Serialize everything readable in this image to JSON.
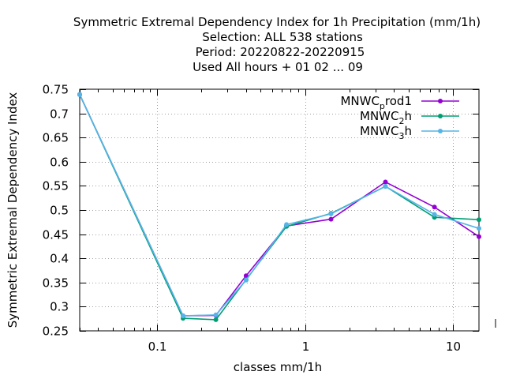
{
  "chart_data": {
    "type": "line",
    "title_lines": [
      "Symmetric Extremal Dependency Index  for 1h Precipitation (mm/1h)",
      "Selection: ALL    538 stations",
      "Period: 20220822-20220915",
      "Used  All hours + 01 02 ... 09"
    ],
    "xlabel": "classes mm/1h",
    "ylabel": "Symmetric Extremal Dependency Index",
    "x_scale": "log",
    "xlim": [
      0.03,
      15
    ],
    "ylim": [
      0.25,
      0.75
    ],
    "grid": true,
    "legend_position": "top-right",
    "x_ticks": [
      {
        "value": 0.1,
        "label": "0.1"
      },
      {
        "value": 1,
        "label": "1"
      },
      {
        "value": 10,
        "label": "10"
      }
    ],
    "y_ticks": [
      {
        "value": 0.25,
        "label": "0.25"
      },
      {
        "value": 0.3,
        "label": "0.3"
      },
      {
        "value": 0.35,
        "label": "0.35"
      },
      {
        "value": 0.4,
        "label": "0.4"
      },
      {
        "value": 0.45,
        "label": "0.45"
      },
      {
        "value": 0.5,
        "label": "0.5"
      },
      {
        "value": 0.55,
        "label": "0.55"
      },
      {
        "value": 0.6,
        "label": "0.6"
      },
      {
        "value": 0.65,
        "label": "0.65"
      },
      {
        "value": 0.7,
        "label": "0.7"
      },
      {
        "value": 0.75,
        "label": "0.75"
      }
    ],
    "x": [
      0.03,
      0.15,
      0.25,
      0.4,
      0.75,
      1.5,
      3.5,
      7.5,
      15
    ],
    "series": [
      {
        "legend": {
          "base": "MNWC",
          "sub": "p",
          "rest": "rod1"
        },
        "color": "#9400d3",
        "values": [
          0.739,
          0.281,
          0.282,
          0.364,
          0.467,
          0.481,
          0.558,
          0.506,
          0.445
        ]
      },
      {
        "legend": {
          "base": "MNWC",
          "sub": "2",
          "rest": "h"
        },
        "color": "#009e73",
        "values": [
          0.739,
          0.276,
          0.273,
          0.356,
          0.466,
          0.493,
          0.549,
          0.485,
          0.48
        ]
      },
      {
        "legend": {
          "base": "MNWC",
          "sub": "3",
          "rest": "h"
        },
        "color": "#56b4e9",
        "values": [
          0.739,
          0.281,
          0.283,
          0.355,
          0.47,
          0.492,
          0.549,
          0.491,
          0.462
        ]
      }
    ]
  }
}
